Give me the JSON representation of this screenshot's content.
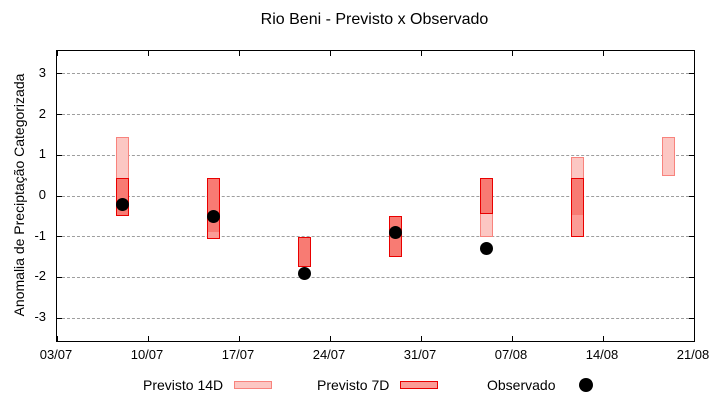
{
  "chart_data": {
    "type": "bar",
    "variant": "forecast-range-boxes-with-observed-points",
    "title": "Rio Beni - Previsto x Observado",
    "ylabel": "Anomalia de Preciptação Categorizada",
    "grid": true,
    "legend_position": "bottom",
    "ylim": [
      -3.56,
      3.56
    ],
    "y_ticks": [
      {
        "value": 3,
        "label": "3"
      },
      {
        "value": 2,
        "label": "2"
      },
      {
        "value": 1,
        "label": "1"
      },
      {
        "value": 0,
        "label": "0"
      },
      {
        "value": -1,
        "label": "-1"
      },
      {
        "value": -2,
        "label": "-2"
      },
      {
        "value": -3,
        "label": "-3"
      }
    ],
    "x_domain_days": 49,
    "x_ticks": [
      {
        "day": 0,
        "label": "03/07"
      },
      {
        "day": 7,
        "label": "10/07"
      },
      {
        "day": 14,
        "label": "17/07"
      },
      {
        "day": 21,
        "label": "24/07"
      },
      {
        "day": 28,
        "label": "31/07"
      },
      {
        "day": 35,
        "label": "07/08"
      },
      {
        "day": 42,
        "label": "14/08"
      },
      {
        "day": 49,
        "label": "21/08"
      }
    ],
    "legend": [
      {
        "label": "Previsto 14D",
        "marker": "box-light-pink"
      },
      {
        "label": "Previsto 7D",
        "marker": "box-red"
      },
      {
        "label": "Observado",
        "marker": "black-dot"
      }
    ],
    "colors": {
      "previsto_14d_fill": "#fcc7c3",
      "previsto_14d_border": "#f8837d",
      "previsto_7d_fill": "#fb9c96",
      "previsto_7d_border": "#e90000",
      "overlap_fill": "#f87b73",
      "observado": "#000000",
      "grid": "#9e9e9e",
      "axis": "#000000"
    },
    "clusters": [
      {
        "date": "08/07",
        "day": 5,
        "previsto_14d": [
          -0.5,
          1.45
        ],
        "previsto_7d": [
          -0.5,
          0.45
        ],
        "observado": -0.2
      },
      {
        "date": "15/07",
        "day": 12,
        "previsto_14d": [
          -0.9,
          0.45
        ],
        "previsto_7d": [
          -1.05,
          0.45
        ],
        "observado": -0.5
      },
      {
        "date": "22/07",
        "day": 19,
        "previsto_14d": [
          -1.75,
          -1.0
        ],
        "previsto_7d": [
          -1.75,
          -1.0
        ],
        "observado": -1.9
      },
      {
        "date": "29/07",
        "day": 26,
        "previsto_14d": [
          -1.5,
          -0.5
        ],
        "previsto_7d": [
          -1.5,
          -0.5
        ],
        "observado": -0.9
      },
      {
        "date": "05/08",
        "day": 33,
        "previsto_14d": [
          -1.0,
          0.45
        ],
        "previsto_7d": [
          -0.45,
          0.45
        ],
        "observado": -1.3
      },
      {
        "date": "12/08",
        "day": 40,
        "previsto_14d": [
          -0.5,
          0.95
        ],
        "previsto_7d": [
          -1.0,
          0.45
        ],
        "observado": null
      },
      {
        "date": "19/08",
        "day": 47,
        "previsto_14d": [
          0.5,
          1.45
        ],
        "previsto_7d": null,
        "observado": null
      }
    ]
  }
}
